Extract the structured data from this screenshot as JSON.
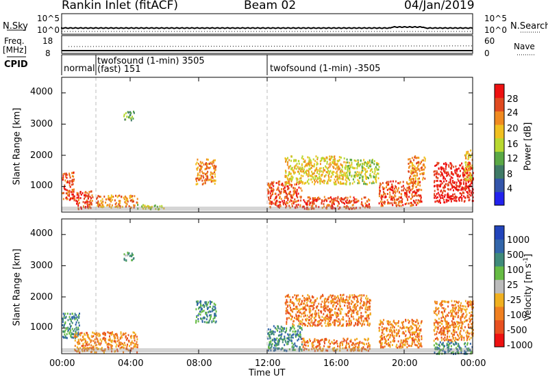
{
  "header": {
    "station": "Rankin Inlet (fitACF)",
    "beam": "Beam 02",
    "date": "04/Jan/2019"
  },
  "summary": {
    "nsky_label": "N.Sky",
    "nsky_ticks": [
      "10^5",
      "10^0"
    ],
    "nsearch_label": "N.Search",
    "nsearch_ticks": [
      "10^5",
      "10^0"
    ],
    "freq_label": "Freq.",
    "freq_unit": "[MHz]",
    "freq_ticks": [
      "18",
      "8"
    ],
    "nave_label": "Nave",
    "nave_ticks": [
      "60",
      "0"
    ],
    "cpid_label": "CPID",
    "cpid_segments": [
      {
        "text": "normal",
        "start_h": 0.0,
        "end_h": 2.0
      },
      {
        "text": "twofsound (1-min) 3505",
        "sub": "(fast) 151",
        "start_h": 2.0,
        "end_h": 12.0
      },
      {
        "text": "twofsound (1-min) -3505",
        "start_h": 12.0,
        "end_h": 24.0
      }
    ]
  },
  "colors": {
    "power_scale": [
      "#2222ee",
      "#3355aa",
      "#3f7a66",
      "#5aa845",
      "#b8d830",
      "#f0c020",
      "#f08a20",
      "#e04a20",
      "#ee1111"
    ],
    "velocity_scale": [
      "#2244bb",
      "#3366aa",
      "#3f8a7a",
      "#66bb44",
      "#bbbbbb",
      "#f0b020",
      "#f08020",
      "#e85020",
      "#ee1111"
    ]
  },
  "colorbars": {
    "power": {
      "label": "Power [dB]",
      "ticks": [
        "28",
        "24",
        "20",
        "16",
        "12",
        "8",
        "4"
      ]
    },
    "velocity": {
      "label_main": "Velocity  [m s",
      "label_sup": "-1",
      "label_end": "]",
      "ticks": [
        "1000",
        "500",
        "100",
        "25",
        "-25",
        "-100",
        "-500",
        "-1000"
      ]
    }
  },
  "axes": {
    "ylabel": "Slant Range [km]",
    "yticks": [
      "4000",
      "3000",
      "2000",
      "1000"
    ],
    "xticks": [
      "00:00",
      "04:00",
      "08:00",
      "12:00",
      "16:00",
      "20:00",
      "00:00"
    ],
    "xlabel": "Time UT"
  },
  "chart_data": {
    "type": "heatmap",
    "title": "Rankin Inlet (fitACF)",
    "xlabel": "Time UT",
    "ylabel": "Slant Range [km]",
    "xlim_hours": [
      0,
      24
    ],
    "ylim_km": [
      180,
      4500
    ],
    "panels": [
      {
        "name": "Power",
        "unit": "dB",
        "range": [
          0,
          32
        ],
        "echo_regions": [
          {
            "t": [
              0.0,
              0.7
            ],
            "r": [
              600,
              1500
            ],
            "v": 28
          },
          {
            "t": [
              0.7,
              1.8
            ],
            "r": [
              300,
              900
            ],
            "v": 26
          },
          {
            "t": [
              2.0,
              4.4
            ],
            "r": [
              350,
              750
            ],
            "v": 24
          },
          {
            "t": [
              4.4,
              6.0
            ],
            "r": [
              280,
              450
            ],
            "v": 16
          },
          {
            "t": [
              7.8,
              9.0
            ],
            "r": [
              1100,
              1900
            ],
            "v": 22
          },
          {
            "t": [
              3.6,
              4.2
            ],
            "r": [
              3150,
              3450
            ],
            "v": 12
          },
          {
            "t": [
              12.0,
              14.0
            ],
            "r": [
              350,
              1200
            ],
            "v": 28
          },
          {
            "t": [
              13.0,
              16.5
            ],
            "r": [
              1100,
              2000
            ],
            "v": 18
          },
          {
            "t": [
              14.0,
              18.0
            ],
            "r": [
              300,
              700
            ],
            "v": 26
          },
          {
            "t": [
              16.5,
              18.5
            ],
            "r": [
              1100,
              1900
            ],
            "v": 16
          },
          {
            "t": [
              18.5,
              21.0
            ],
            "r": [
              400,
              1200
            ],
            "v": 28
          },
          {
            "t": [
              20.2,
              21.2
            ],
            "r": [
              1100,
              2000
            ],
            "v": 22
          },
          {
            "t": [
              21.7,
              24.0
            ],
            "r": [
              500,
              1800
            ],
            "v": 30
          },
          {
            "t": [
              23.5,
              24.0
            ],
            "r": [
              1200,
              2200
            ],
            "v": 20
          }
        ]
      },
      {
        "name": "Velocity",
        "unit": "m s^-1",
        "range": [
          -1000,
          1000
        ],
        "echo_regions": [
          {
            "t": [
              0.0,
              1.0
            ],
            "r": [
              700,
              1500
            ],
            "v": 150
          },
          {
            "t": [
              0.7,
              4.4
            ],
            "r": [
              250,
              900
            ],
            "v": -120
          },
          {
            "t": [
              7.8,
              9.0
            ],
            "r": [
              1200,
              1900
            ],
            "v": 200
          },
          {
            "t": [
              3.6,
              4.2
            ],
            "r": [
              3150,
              3450
            ],
            "v": 80
          },
          {
            "t": [
              12.0,
              14.0
            ],
            "r": [
              300,
              1100
            ],
            "v": 120
          },
          {
            "t": [
              13.0,
              18.0
            ],
            "r": [
              1100,
              2100
            ],
            "v": -200
          },
          {
            "t": [
              14.0,
              18.0
            ],
            "r": [
              300,
              700
            ],
            "v": -150
          },
          {
            "t": [
              18.5,
              21.0
            ],
            "r": [
              400,
              1300
            ],
            "v": -250
          },
          {
            "t": [
              21.7,
              24.0
            ],
            "r": [
              600,
              1900
            ],
            "v": -300
          },
          {
            "t": [
              21.7,
              24.0
            ],
            "r": [
              200,
              600
            ],
            "v": 120
          }
        ]
      }
    ]
  }
}
